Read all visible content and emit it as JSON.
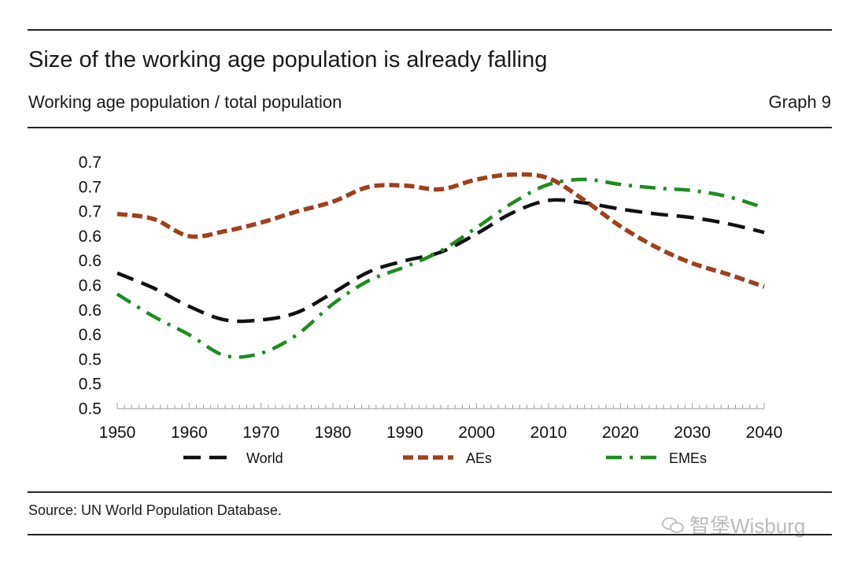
{
  "header": {
    "title": "Size of the working age population is already falling",
    "subtitle": "Working age population / total population",
    "graph_number": "Graph 9"
  },
  "footer": {
    "source": "Source: UN World Population Database.",
    "watermark": "智堡Wisburg"
  },
  "colors": {
    "World": "#111111",
    "AEs": "#a0401a",
    "EMEs": "#1e8c1e"
  },
  "chart_data": {
    "type": "line",
    "title": "Size of the working age population is already falling",
    "subtitle": "Working age population / total population",
    "xlabel": "",
    "ylabel": "",
    "xlim": [
      1950,
      2040
    ],
    "ylim": [
      0.5,
      0.7
    ],
    "x_ticks": [
      1950,
      1960,
      1970,
      1980,
      1990,
      2000,
      2010,
      2020,
      2030,
      2040
    ],
    "y_tick_values": [
      0.5,
      0.52,
      0.54,
      0.56,
      0.58,
      0.6,
      0.62,
      0.64,
      0.66,
      0.68,
      0.7
    ],
    "y_tick_labels": [
      "0.5",
      "0.5",
      "0.5",
      "0.6",
      "0.6",
      "0.6",
      "0.6",
      "0.6",
      "0.7",
      "0.7",
      "0.7"
    ],
    "legend_position": "bottom",
    "grid": false,
    "series": [
      {
        "name": "World",
        "style": "dashed",
        "x": [
          1950,
          1955,
          1960,
          1965,
          1970,
          1975,
          1980,
          1985,
          1990,
          1995,
          2000,
          2005,
          2010,
          2015,
          2020,
          2025,
          2030,
          2035,
          2040
        ],
        "values": [
          0.61,
          0.598,
          0.583,
          0.572,
          0.572,
          0.578,
          0.594,
          0.611,
          0.62,
          0.627,
          0.642,
          0.659,
          0.669,
          0.667,
          0.662,
          0.658,
          0.655,
          0.65,
          0.643
        ]
      },
      {
        "name": "AEs",
        "style": "short-dashed",
        "x": [
          1950,
          1955,
          1960,
          1965,
          1970,
          1975,
          1980,
          1985,
          1990,
          1995,
          2000,
          2005,
          2010,
          2015,
          2020,
          2025,
          2030,
          2035,
          2040
        ],
        "values": [
          0.658,
          0.654,
          0.64,
          0.644,
          0.651,
          0.66,
          0.668,
          0.68,
          0.681,
          0.678,
          0.686,
          0.69,
          0.687,
          0.669,
          0.648,
          0.631,
          0.618,
          0.609,
          0.599
        ]
      },
      {
        "name": "EMEs",
        "style": "dash-dot",
        "x": [
          1950,
          1955,
          1960,
          1965,
          1970,
          1975,
          1980,
          1985,
          1990,
          1995,
          2000,
          2005,
          2010,
          2015,
          2020,
          2025,
          2030,
          2035,
          2040
        ],
        "values": [
          0.593,
          0.575,
          0.56,
          0.543,
          0.545,
          0.56,
          0.585,
          0.604,
          0.615,
          0.628,
          0.647,
          0.667,
          0.682,
          0.686,
          0.682,
          0.679,
          0.677,
          0.672,
          0.663
        ]
      }
    ]
  }
}
